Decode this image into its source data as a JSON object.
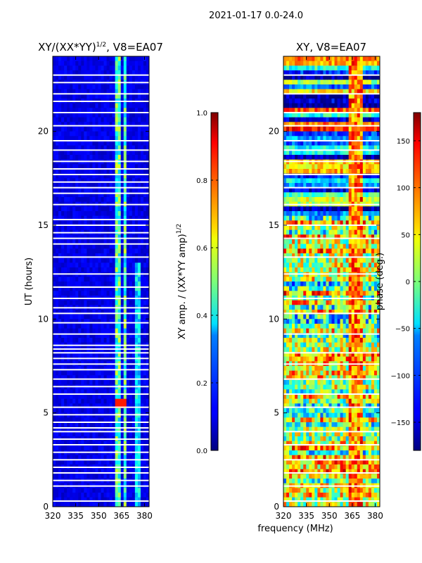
{
  "suptitle": "2021-01-17 0.0-24.0",
  "chart_data": [
    {
      "type": "heatmap",
      "title_base": "XY/(XX*YY)",
      "title_exp": "1/2",
      "title_suffix": ", V8=EA07",
      "xlabel": "frequency (MHz)",
      "ylabel": "UT (hours)",
      "xlim": [
        320,
        383
      ],
      "ylim": [
        0,
        24
      ],
      "xticks": [
        "320",
        "335",
        "350",
        "365",
        "380"
      ],
      "xtick_values": [
        320,
        335,
        350,
        365,
        380
      ],
      "yticks": [
        "0",
        "5",
        "10",
        "15",
        "20"
      ],
      "ytick_values": [
        0,
        5,
        10,
        15,
        20
      ],
      "colormap": "jet",
      "colorbar": {
        "label_base": "XY amp. / (XX*YY amp)",
        "label_exp": "1/2",
        "vmin": 0.0,
        "vmax": 1.0,
        "ticks": [
          "0.0",
          "0.2",
          "0.4",
          "0.6",
          "0.8",
          "1.0"
        ],
        "tick_values": [
          0.0,
          0.2,
          0.4,
          0.6,
          0.8,
          1.0
        ]
      },
      "dominant_value": 0.1,
      "bright_channels_mhz": [
        [
          361,
          365
        ],
        [
          366,
          369
        ]
      ],
      "bright_value": 0.45,
      "flagged_hours": [
        0.3,
        1.1,
        1.4,
        1.8,
        2.1,
        2.5,
        2.9,
        3.3,
        3.6,
        4.0,
        4.2,
        4.5,
        4.9,
        5.3,
        6.0,
        6.4,
        6.8,
        7.3,
        7.6,
        7.9,
        8.2,
        8.4,
        8.6,
        9.2,
        9.8,
        10.3,
        10.6,
        11.1,
        11.7,
        12.4,
        13.3,
        14.0,
        14.3,
        14.6,
        15.0,
        15.3,
        16.1,
        16.7,
        17.0,
        17.3,
        17.7,
        18.0,
        18.4,
        19.0,
        19.5,
        20.3,
        21.0,
        21.6,
        22.0,
        22.6,
        23.0
      ]
    },
    {
      "type": "heatmap",
      "title": "XY, V8=EA07",
      "xlabel": "frequency (MHz)",
      "ylabel": "",
      "xlim": [
        320,
        383
      ],
      "ylim": [
        0,
        24
      ],
      "xticks": [
        "320",
        "335",
        "350",
        "365",
        "380"
      ],
      "xtick_values": [
        320,
        335,
        350,
        365,
        380
      ],
      "yticks": [
        "0",
        "5",
        "10",
        "15",
        "20"
      ],
      "ytick_values": [
        0,
        5,
        10,
        15,
        20
      ],
      "colormap": "jet",
      "colorbar": {
        "label": "phase (deg.)",
        "vmin": -180,
        "vmax": 180,
        "ticks": [
          "−150",
          "−100",
          "−50",
          "0",
          "50",
          "100",
          "150"
        ],
        "tick_values": [
          -150,
          -100,
          -50,
          0,
          50,
          100,
          150
        ]
      },
      "flagged_hours": [
        0.3,
        1.1,
        1.8,
        2.5,
        3.3,
        4.0,
        5.3,
        6.0,
        6.8,
        7.6,
        8.2,
        9.2,
        10.3,
        11.1,
        12.4,
        13.3,
        14.3,
        15.0,
        16.1,
        17.0,
        17.7,
        18.4,
        19.0,
        19.5,
        20.3,
        21.0,
        22.0,
        23.0
      ]
    }
  ]
}
